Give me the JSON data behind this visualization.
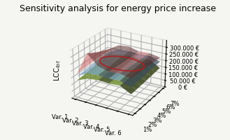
{
  "title": "Sensitivity analysis for energy price increase",
  "xlabel": "",
  "ylabel": "LCC_tot",
  "zlabel": "",
  "x_labels": [
    "Var. 1",
    "Var. 2",
    "Var. 3",
    "Var. 4",
    "Var. 5",
    "Var. 6"
  ],
  "y_labels": [
    "1%",
    "2%",
    "3%",
    "4%",
    "5%",
    "6%",
    "7%"
  ],
  "background_color": "#f0f0ee",
  "surface_green_color": "#7a9a3a",
  "surface_blue_color": "#7faacc",
  "surface_red_color": "#e87070",
  "z_values_low": [
    [
      130000,
      160000,
      170000,
      165000,
      170000,
      130000
    ],
    [
      135000,
      162000,
      172000,
      167000,
      172000,
      132000
    ],
    [
      140000,
      165000,
      175000,
      170000,
      175000,
      135000
    ],
    [
      145000,
      168000,
      178000,
      173000,
      178000,
      138000
    ],
    [
      150000,
      172000,
      182000,
      177000,
      183000,
      142000
    ],
    [
      155000,
      176000,
      186000,
      181000,
      188000,
      146000
    ],
    [
      160000,
      180000,
      190000,
      185000,
      193000,
      150000
    ]
  ],
  "z_values_mid": [
    [
      160000,
      200000,
      205000,
      200000,
      205000,
      180000
    ],
    [
      163000,
      203000,
      208000,
      203000,
      208000,
      183000
    ],
    [
      166000,
      206000,
      211000,
      206000,
      211000,
      186000
    ],
    [
      169000,
      209000,
      214000,
      209000,
      214000,
      189000
    ],
    [
      172000,
      212000,
      217000,
      212000,
      217000,
      192000
    ],
    [
      175000,
      215000,
      220000,
      215000,
      220000,
      195000
    ],
    [
      178000,
      218000,
      223000,
      218000,
      223000,
      198000
    ]
  ],
  "z_values_high": [
    [
      180000,
      340000,
      270000,
      250000,
      255000,
      240000
    ],
    [
      183000,
      320000,
      268000,
      248000,
      253000,
      238000
    ],
    [
      186000,
      300000,
      266000,
      246000,
      251000,
      236000
    ],
    [
      189000,
      285000,
      264000,
      244000,
      249000,
      234000
    ],
    [
      192000,
      270000,
      262000,
      242000,
      247000,
      232000
    ],
    [
      195000,
      260000,
      260000,
      240000,
      245000,
      230000
    ],
    [
      198000,
      250000,
      258000,
      238000,
      243000,
      228000
    ]
  ],
  "ylim": [
    0,
    350000
  ],
  "title_fontsize": 9,
  "axis_fontsize": 7,
  "tick_fontsize": 6
}
